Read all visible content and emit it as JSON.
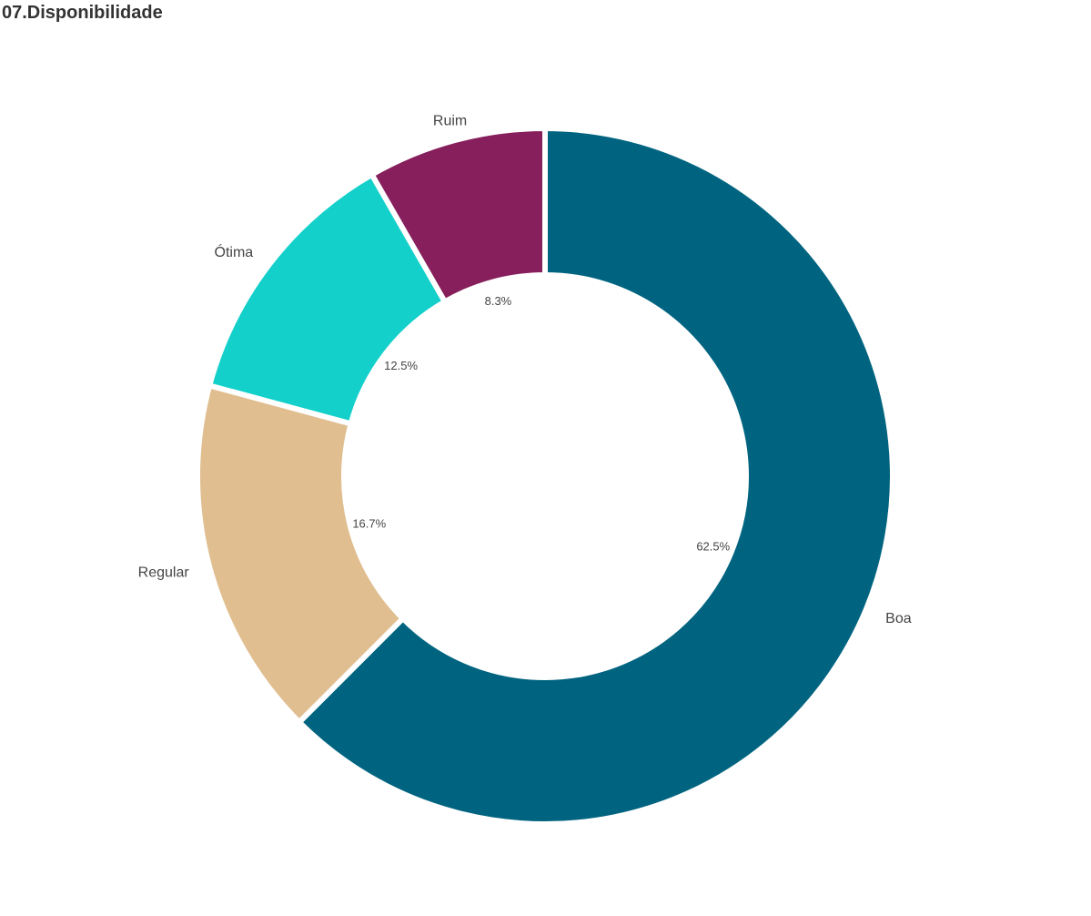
{
  "page": {
    "title": "07.Disponibilidade"
  },
  "chart_data": {
    "type": "pie",
    "donut": true,
    "title": "07.Disponibilidade",
    "start_at": "12 o'clock",
    "direction": "clockwise",
    "slices": [
      {
        "label": "Boa",
        "value": 62.5,
        "value_label": "62.5%",
        "color": "#006480"
      },
      {
        "label": "Regular",
        "value": 16.7,
        "value_label": "16.7%",
        "color": "#E0BE8F"
      },
      {
        "label": "Ótima",
        "value": 12.5,
        "value_label": "12.5%",
        "color": "#13D0CB"
      },
      {
        "label": "Ruim",
        "value": 8.3,
        "value_label": "8.3%",
        "color": "#861F5C"
      }
    ]
  }
}
